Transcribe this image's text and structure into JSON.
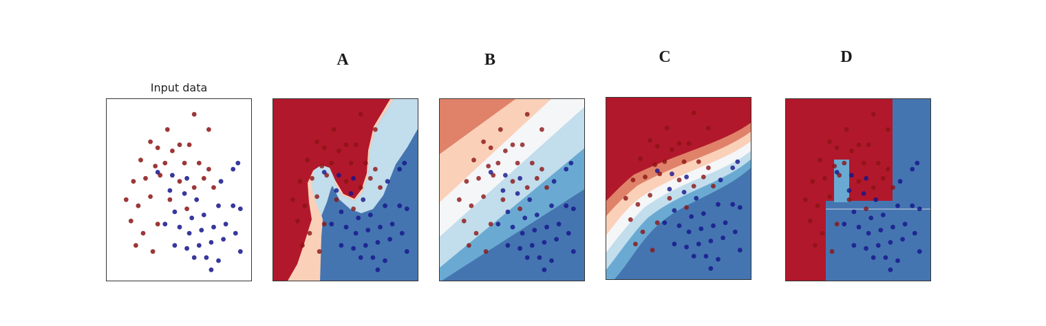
{
  "chart_data": [
    {
      "type": "scatter",
      "title": "Input data",
      "xlim": [
        -3,
        3
      ],
      "ylim": [
        -3,
        3
      ],
      "series": [
        {
          "values": [
            [
              0.6,
              2.5
            ],
            [
              -0.5,
              2.0
            ],
            [
              1.2,
              2.0
            ],
            [
              0.0,
              1.5
            ],
            [
              -1.2,
              1.6
            ],
            [
              -0.9,
              1.4
            ],
            [
              -0.3,
              1.3
            ],
            [
              0.4,
              1.5
            ],
            [
              -1.6,
              1.0
            ],
            [
              -1.0,
              0.8
            ],
            [
              -0.6,
              0.9
            ],
            [
              0.2,
              0.9
            ],
            [
              0.8,
              0.9
            ],
            [
              1.2,
              0.7
            ],
            [
              -1.9,
              0.3
            ],
            [
              -1.4,
              0.4
            ],
            [
              -0.8,
              0.5
            ],
            [
              0.0,
              0.3
            ],
            [
              0.6,
              0.1
            ],
            [
              1.0,
              0.4
            ],
            [
              1.4,
              0.1
            ],
            [
              -2.2,
              -0.3
            ],
            [
              -1.7,
              -0.5
            ],
            [
              -1.2,
              -0.2
            ],
            [
              -0.4,
              -0.3
            ],
            [
              0.3,
              -0.6
            ],
            [
              -2.0,
              -1.0
            ],
            [
              -1.5,
              -1.4
            ],
            [
              -0.9,
              -1.1
            ],
            [
              -1.8,
              -1.8
            ],
            [
              -1.1,
              -2.0
            ]
          ],
          "color": "#8b1414"
        },
        {
          "values": [
            [
              -0.9,
              0.6
            ],
            [
              -0.3,
              0.5
            ],
            [
              0.3,
              0.4
            ],
            [
              -0.4,
              0.0
            ],
            [
              0.2,
              -0.1
            ],
            [
              0.7,
              -0.3
            ],
            [
              -0.2,
              -0.7
            ],
            [
              0.5,
              -0.9
            ],
            [
              1.0,
              -0.8
            ],
            [
              1.6,
              -0.5
            ],
            [
              2.2,
              -0.5
            ],
            [
              2.5,
              -0.6
            ],
            [
              1.7,
              0.3
            ],
            [
              2.2,
              0.7
            ],
            [
              2.4,
              0.9
            ],
            [
              -0.6,
              -1.1
            ],
            [
              0.0,
              -1.2
            ],
            [
              0.4,
              -1.4
            ],
            [
              0.9,
              -1.3
            ],
            [
              1.4,
              -1.2
            ],
            [
              1.9,
              -1.1
            ],
            [
              2.3,
              -1.4
            ],
            [
              -0.2,
              -1.8
            ],
            [
              0.3,
              -1.9
            ],
            [
              0.8,
              -1.8
            ],
            [
              1.3,
              -1.7
            ],
            [
              1.8,
              -1.6
            ],
            [
              0.6,
              -2.2
            ],
            [
              1.1,
              -2.2
            ],
            [
              1.6,
              -2.3
            ],
            [
              2.5,
              -2.0
            ],
            [
              1.3,
              -2.6
            ]
          ],
          "color": "#14148b"
        }
      ]
    },
    {
      "type": "scatter",
      "title": "A",
      "xlim": [
        -3,
        3
      ],
      "ylim": [
        -3,
        3
      ]
    },
    {
      "type": "scatter",
      "title": "B",
      "xlim": [
        -3,
        3
      ],
      "ylim": [
        -3,
        3
      ]
    },
    {
      "type": "scatter",
      "title": "C",
      "xlim": [
        -3,
        3
      ],
      "ylim": [
        -3,
        3
      ]
    },
    {
      "type": "scatter",
      "title": "D",
      "xlim": [
        -3,
        3
      ],
      "ylim": [
        -3,
        3
      ]
    }
  ],
  "colors": {
    "red_dark": "#b2182b",
    "red_mid": "#e0826a",
    "red_light": "#fbd0b9",
    "white": "#f4f6f8",
    "blue_light": "#c2ddec",
    "blue_mid": "#6aaad2",
    "blue_dark": "#4575b0",
    "point_red": "#8b1414",
    "point_blue": "#14148b"
  }
}
